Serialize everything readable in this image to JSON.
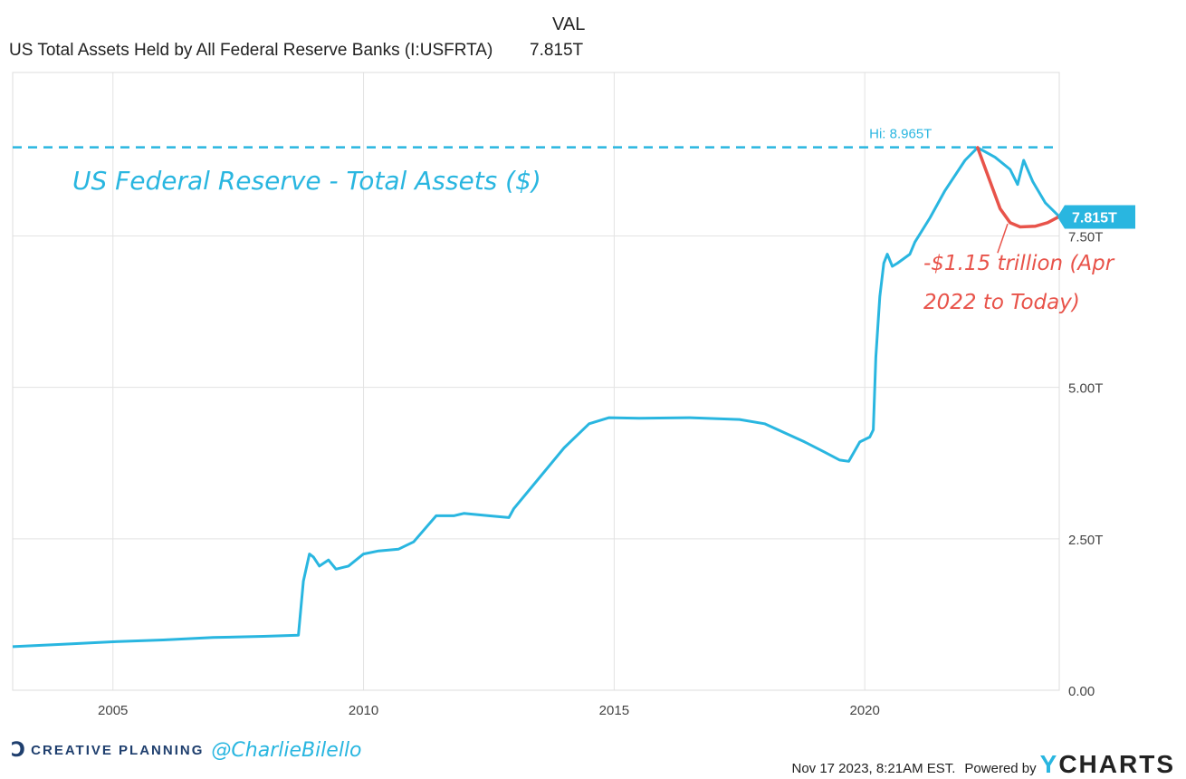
{
  "header": {
    "column_label": "VAL",
    "series_name": "US Total Assets Held by All Federal Reserve Banks (I:USFRTA)",
    "series_value": "7.815T"
  },
  "annotations": {
    "hi_label": "Hi: 8.965T",
    "chart_heading": "US Federal Reserve - Total Assets ($)",
    "decline_line1": "-$1.15 trillion (Apr",
    "decline_line2": "2022 to Today)",
    "current_badge": "7.815T",
    "obscured_tick": "7.50T"
  },
  "footer": {
    "brand_text": "CREATIVE PLANNING",
    "handle": "@CharlieBilello",
    "timestamp": "Nov 17 2023, 8:21AM EST.",
    "powered_by": "Powered by",
    "logo_y": "Y",
    "logo_rest": "CHARTS"
  },
  "colors": {
    "line": "#29b6e0",
    "annotation_red": "#e8534a",
    "grid": "#e3e3e3",
    "text": "#222222"
  },
  "chart_data": {
    "type": "line",
    "title": "US Total Assets Held by All Federal Reserve Banks (I:USFRTA)",
    "xlabel": "",
    "ylabel": "",
    "x_ticks": [
      "2005",
      "2010",
      "2015",
      "2020"
    ],
    "y_ticks": [
      "0.00",
      "2.50T",
      "5.00T",
      "7.50T"
    ],
    "xlim": [
      2003.0,
      2023.88
    ],
    "ylim": [
      0,
      10.2
    ],
    "grid": true,
    "unit": "T",
    "series": [
      {
        "name": "US Total Assets Held by All Federal Reserve Banks (I:USFRTA)",
        "points": [
          [
            2003.0,
            0.72
          ],
          [
            2004.0,
            0.76
          ],
          [
            2005.0,
            0.8
          ],
          [
            2006.0,
            0.83
          ],
          [
            2007.0,
            0.87
          ],
          [
            2008.0,
            0.89
          ],
          [
            2008.7,
            0.91
          ],
          [
            2008.8,
            1.8
          ],
          [
            2008.92,
            2.25
          ],
          [
            2009.0,
            2.2
          ],
          [
            2009.12,
            2.05
          ],
          [
            2009.3,
            2.15
          ],
          [
            2009.45,
            2.0
          ],
          [
            2009.7,
            2.05
          ],
          [
            2010.0,
            2.25
          ],
          [
            2010.3,
            2.3
          ],
          [
            2010.7,
            2.33
          ],
          [
            2011.0,
            2.45
          ],
          [
            2011.45,
            2.88
          ],
          [
            2011.8,
            2.88
          ],
          [
            2012.0,
            2.92
          ],
          [
            2012.5,
            2.88
          ],
          [
            2012.9,
            2.85
          ],
          [
            2013.0,
            3.0
          ],
          [
            2013.5,
            3.5
          ],
          [
            2014.0,
            4.0
          ],
          [
            2014.5,
            4.4
          ],
          [
            2014.9,
            4.5
          ],
          [
            2015.5,
            4.49
          ],
          [
            2016.5,
            4.5
          ],
          [
            2017.5,
            4.47
          ],
          [
            2018.0,
            4.4
          ],
          [
            2018.8,
            4.1
          ],
          [
            2019.2,
            3.93
          ],
          [
            2019.5,
            3.8
          ],
          [
            2019.68,
            3.78
          ],
          [
            2019.9,
            4.1
          ],
          [
            2020.1,
            4.18
          ],
          [
            2020.17,
            4.3
          ],
          [
            2020.22,
            5.5
          ],
          [
            2020.3,
            6.5
          ],
          [
            2020.38,
            7.05
          ],
          [
            2020.45,
            7.2
          ],
          [
            2020.55,
            7.0
          ],
          [
            2020.65,
            7.05
          ],
          [
            2020.9,
            7.2
          ],
          [
            2021.0,
            7.4
          ],
          [
            2021.3,
            7.8
          ],
          [
            2021.6,
            8.25
          ],
          [
            2022.0,
            8.75
          ],
          [
            2022.25,
            8.96
          ],
          [
            2022.6,
            8.8
          ],
          [
            2022.9,
            8.6
          ],
          [
            2023.05,
            8.35
          ],
          [
            2023.17,
            8.75
          ],
          [
            2023.35,
            8.4
          ],
          [
            2023.6,
            8.05
          ],
          [
            2023.88,
            7.82
          ]
        ]
      },
      {
        "name": "-$1.15 trillion (Apr 2022 to Today)",
        "points": [
          [
            2022.25,
            8.96
          ],
          [
            2022.5,
            8.4
          ],
          [
            2022.7,
            7.95
          ],
          [
            2022.9,
            7.72
          ],
          [
            2023.1,
            7.65
          ],
          [
            2023.4,
            7.66
          ],
          [
            2023.65,
            7.72
          ],
          [
            2023.88,
            7.82
          ]
        ]
      }
    ],
    "reference_line": {
      "label": "Hi: 8.965T",
      "value": 8.965
    },
    "last_value": 7.815
  }
}
